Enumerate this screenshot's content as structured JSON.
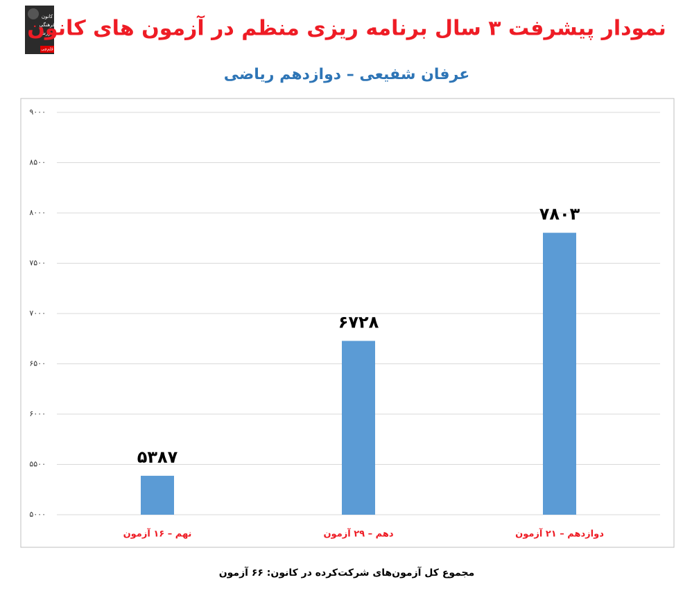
{
  "logo": [
    "کانون",
    "فرهنگی",
    "آموزش",
    "قلم‌چی"
  ],
  "chart_data": {
    "type": "bar",
    "title": "نمودار پیشرفت ۳ سال برنامه ریزی منظم در آزمون های کانون",
    "subtitle": "عرفان شفیعی – دوازدهم ریاضی",
    "caption": "مجموع کل آزمون‌های شرکت‌کرده در کانون: ۶۶ آزمون",
    "categories": [
      "نهم – ۱۶ آزمون",
      "دهم – ۲۹ آزمون",
      "دوازدهم – ۲۱ آزمون"
    ],
    "values": [
      5387,
      6728,
      7803
    ],
    "value_labels": [
      "۵۳۸۷",
      "۶۷۲۸",
      "۷۸۰۳"
    ],
    "color": "#5b9bd5",
    "ylim": [
      5000,
      9000
    ],
    "yticks": [
      {
        "value": 5000,
        "label": "۵۰۰۰"
      },
      {
        "value": 5500,
        "label": "۵۵۰۰"
      },
      {
        "value": 6000,
        "label": "۶۰۰۰"
      },
      {
        "value": 6500,
        "label": "۶۵۰۰"
      },
      {
        "value": 7000,
        "label": "۷۰۰۰"
      },
      {
        "value": 7500,
        "label": "۷۵۰۰"
      },
      {
        "value": 8000,
        "label": "۸۰۰۰"
      },
      {
        "value": 8500,
        "label": "۸۵۰۰"
      },
      {
        "value": 9000,
        "label": "۹۰۰۰"
      }
    ],
    "grid": true
  }
}
